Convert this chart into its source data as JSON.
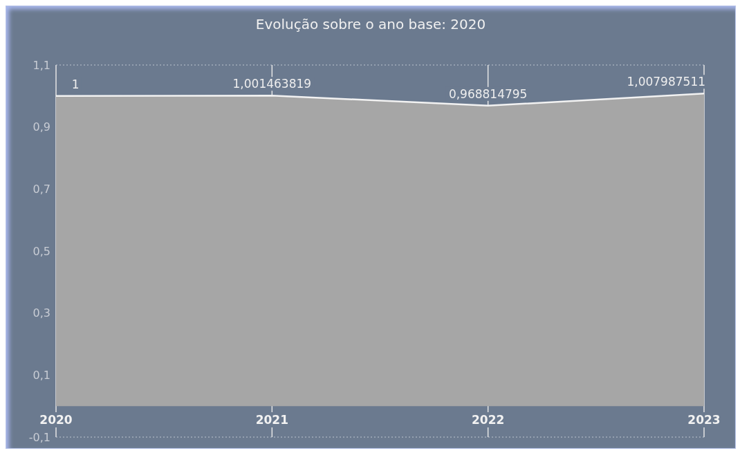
{
  "chart_data": {
    "type": "area",
    "title": "Evolução sobre o ano base: 2020",
    "categories": [
      "2020",
      "2021",
      "2022",
      "2023"
    ],
    "values": [
      1,
      1.001463819,
      0.968814795,
      1.007987511
    ],
    "value_labels": [
      "1",
      "1,001463819",
      "0,968814795",
      "1,007987511"
    ],
    "color": "#a6a6a6",
    "ylim": [
      -0.1,
      1.1
    ],
    "yticks": [
      {
        "value": -0.1,
        "label": "-0,1"
      },
      {
        "value": 0.1,
        "label": "0,1"
      },
      {
        "value": 0.3,
        "label": "0,3"
      },
      {
        "value": 0.5,
        "label": "0,5"
      },
      {
        "value": 0.7,
        "label": "0,7"
      },
      {
        "value": 0.9,
        "label": "0,9"
      },
      {
        "value": 1.1,
        "label": "1,1"
      }
    ],
    "grid": "x",
    "legend": false
  }
}
